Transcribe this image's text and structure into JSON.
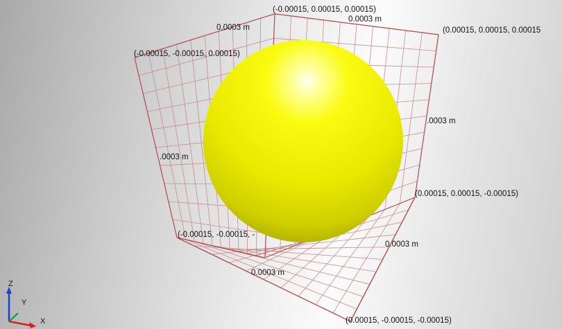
{
  "viewport": {
    "bounding_box_labels": {
      "corner_top_back": "(-0.00015, 0.00015, 0.00015)",
      "corner_top_right": "(0.00015, 0.00015, 0.00015",
      "corner_top_left": "(-0.00015, -0.00015, 0.00015)",
      "corner_mid_right": "(0.00015, 0.00015, -0.00015)",
      "corner_bottom_left": "(-0.00015, -0.00015, -",
      "corner_bottom_right": "(0.00015, -0.00015, -0.00015)"
    },
    "dimension_labels": {
      "top_left_edge": "0.0003 m",
      "top_right_edge": "0.0003 m",
      "left_wall": ".0003 m",
      "right_wall": ".0003 m",
      "floor_right": "0.0003 m",
      "floor_front": "0.0003 m"
    },
    "object": {
      "shape": "sphere",
      "color": "#f0f000"
    },
    "grid_color": "#c98b8b",
    "frame_color": "#b44848",
    "axis_triad": {
      "z_label": "Z",
      "y_label": "Y",
      "x_label": "X",
      "z_color": "#1a3fd8",
      "y_color": "#1aa34a",
      "x_color": "#d21f1f"
    }
  }
}
